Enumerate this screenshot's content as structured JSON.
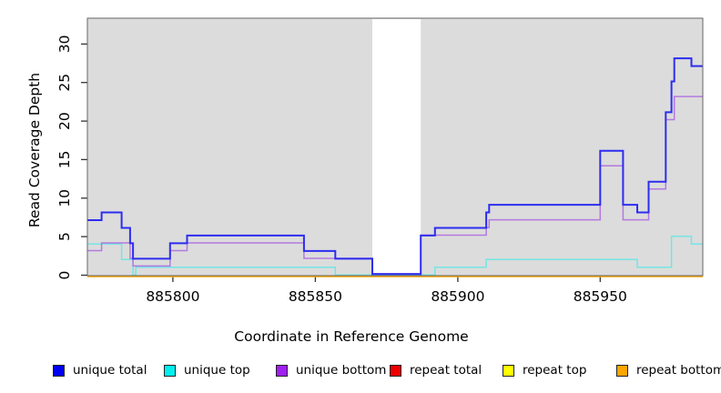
{
  "chart_data": {
    "type": "line",
    "subtype": "step",
    "title": "",
    "xlabel": "Coordinate in Reference Genome",
    "ylabel": "Read Coverage Depth",
    "xlim": [
      885770,
      885986
    ],
    "ylim": [
      0,
      33
    ],
    "x_ticks": [
      885800,
      885850,
      885900,
      885950
    ],
    "y_ticks": [
      0,
      5,
      10,
      15,
      20,
      25,
      30
    ],
    "grid": false,
    "panel_background": "#DCDCDC",
    "border_color": "#666666",
    "no_data_gap": {
      "start": 885870,
      "end": 885887
    },
    "legend_position": "bottom",
    "series": [
      {
        "name": "unique total",
        "color": "#2D2DF0",
        "legend_color": "#0000F0",
        "steps": [
          [
            885770,
            7
          ],
          [
            885775,
            8
          ],
          [
            885782,
            6
          ],
          [
            885785,
            4
          ],
          [
            885786,
            2
          ],
          [
            885799,
            4
          ],
          [
            885805,
            5
          ],
          [
            885846,
            3
          ],
          [
            885857,
            2
          ],
          [
            885870,
            0
          ],
          [
            885887,
            5
          ],
          [
            885892,
            6
          ],
          [
            885910,
            8
          ],
          [
            885911,
            9
          ],
          [
            885950,
            16
          ],
          [
            885958,
            9
          ],
          [
            885963,
            8
          ],
          [
            885967,
            12
          ],
          [
            885973,
            21
          ],
          [
            885975,
            25
          ],
          [
            885976,
            28
          ],
          [
            885982,
            27
          ]
        ]
      },
      {
        "name": "unique top",
        "color": "#76E4E4",
        "legend_color": "#00F0F0",
        "steps": [
          [
            885770,
            4
          ],
          [
            885782,
            2
          ],
          [
            885786,
            0
          ],
          [
            885787,
            1
          ],
          [
            885857,
            0
          ],
          [
            885892,
            1
          ],
          [
            885910,
            2
          ],
          [
            885963,
            1
          ],
          [
            885975,
            5
          ],
          [
            885982,
            4
          ]
        ]
      },
      {
        "name": "unique bottom",
        "color": "#B379E0",
        "legend_color": "#A020F0",
        "steps": [
          [
            885770,
            3
          ],
          [
            885775,
            4
          ],
          [
            885785,
            2
          ],
          [
            885786,
            1
          ],
          [
            885799,
            3
          ],
          [
            885805,
            4
          ],
          [
            885846,
            2
          ],
          [
            885870,
            0
          ],
          [
            885887,
            5
          ],
          [
            885910,
            6
          ],
          [
            885911,
            7
          ],
          [
            885950,
            14
          ],
          [
            885958,
            7
          ],
          [
            885967,
            11
          ],
          [
            885973,
            20
          ],
          [
            885976,
            23
          ]
        ]
      },
      {
        "name": "repeat total",
        "color": "#E00000",
        "legend_color": "#EE0000",
        "steps": [
          [
            885770,
            0
          ]
        ]
      },
      {
        "name": "repeat top",
        "color": "#FFFF00",
        "legend_color": "#FFFF00",
        "steps": [
          [
            885770,
            0
          ]
        ]
      },
      {
        "name": "repeat bottom",
        "color": "#FFA500",
        "legend_color": "#FFA500",
        "steps": [
          [
            885770,
            0
          ]
        ]
      }
    ]
  },
  "legend_x_positions": [
    58,
    180,
    303,
    428,
    552,
    677
  ]
}
